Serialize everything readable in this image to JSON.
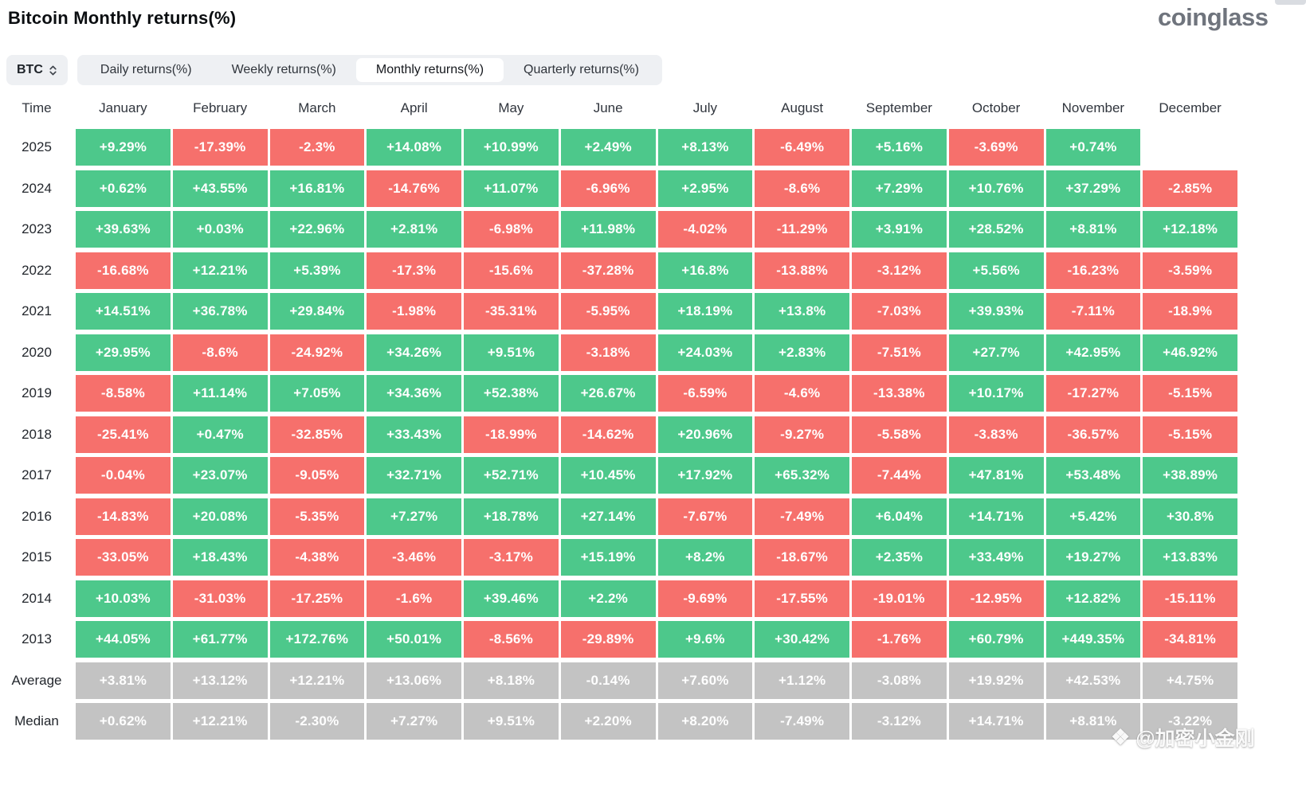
{
  "page": {
    "title": "Bitcoin Monthly returns(%)",
    "logo": "coinglass",
    "watermark": "@加密小金刚"
  },
  "toolbar": {
    "symbol": "BTC",
    "tabs": [
      {
        "label": "Daily returns(%)",
        "active": false
      },
      {
        "label": "Weekly returns(%)",
        "active": false
      },
      {
        "label": "Monthly returns(%)",
        "active": true
      },
      {
        "label": "Quarterly returns(%)",
        "active": false
      }
    ]
  },
  "colors": {
    "positive": "#4dc88b",
    "negative": "#f6706c",
    "neutral": "#c3c3c3",
    "tab_bar_bg": "#eef0f3",
    "header_text": "#30353d"
  },
  "chart_data": {
    "type": "table",
    "title": "Bitcoin Monthly returns(%)",
    "unit": "%",
    "columns": [
      "Time",
      "January",
      "February",
      "March",
      "April",
      "May",
      "June",
      "July",
      "August",
      "September",
      "October",
      "November",
      "December"
    ],
    "rows": [
      {
        "label": "2025",
        "summary": false,
        "values": [
          "+9.29%",
          "-17.39%",
          "-2.3%",
          "+14.08%",
          "+10.99%",
          "+2.49%",
          "+8.13%",
          "-6.49%",
          "+5.16%",
          "-3.69%",
          "+0.74%",
          ""
        ]
      },
      {
        "label": "2024",
        "summary": false,
        "values": [
          "+0.62%",
          "+43.55%",
          "+16.81%",
          "-14.76%",
          "+11.07%",
          "-6.96%",
          "+2.95%",
          "-8.6%",
          "+7.29%",
          "+10.76%",
          "+37.29%",
          "-2.85%"
        ]
      },
      {
        "label": "2023",
        "summary": false,
        "values": [
          "+39.63%",
          "+0.03%",
          "+22.96%",
          "+2.81%",
          "-6.98%",
          "+11.98%",
          "-4.02%",
          "-11.29%",
          "+3.91%",
          "+28.52%",
          "+8.81%",
          "+12.18%"
        ]
      },
      {
        "label": "2022",
        "summary": false,
        "values": [
          "-16.68%",
          "+12.21%",
          "+5.39%",
          "-17.3%",
          "-15.6%",
          "-37.28%",
          "+16.8%",
          "-13.88%",
          "-3.12%",
          "+5.56%",
          "-16.23%",
          "-3.59%"
        ]
      },
      {
        "label": "2021",
        "summary": false,
        "values": [
          "+14.51%",
          "+36.78%",
          "+29.84%",
          "-1.98%",
          "-35.31%",
          "-5.95%",
          "+18.19%",
          "+13.8%",
          "-7.03%",
          "+39.93%",
          "-7.11%",
          "-18.9%"
        ]
      },
      {
        "label": "2020",
        "summary": false,
        "values": [
          "+29.95%",
          "-8.6%",
          "-24.92%",
          "+34.26%",
          "+9.51%",
          "-3.18%",
          "+24.03%",
          "+2.83%",
          "-7.51%",
          "+27.7%",
          "+42.95%",
          "+46.92%"
        ]
      },
      {
        "label": "2019",
        "summary": false,
        "values": [
          "-8.58%",
          "+11.14%",
          "+7.05%",
          "+34.36%",
          "+52.38%",
          "+26.67%",
          "-6.59%",
          "-4.6%",
          "-13.38%",
          "+10.17%",
          "-17.27%",
          "-5.15%"
        ]
      },
      {
        "label": "2018",
        "summary": false,
        "values": [
          "-25.41%",
          "+0.47%",
          "-32.85%",
          "+33.43%",
          "-18.99%",
          "-14.62%",
          "+20.96%",
          "-9.27%",
          "-5.58%",
          "-3.83%",
          "-36.57%",
          "-5.15%"
        ]
      },
      {
        "label": "2017",
        "summary": false,
        "values": [
          "-0.04%",
          "+23.07%",
          "-9.05%",
          "+32.71%",
          "+52.71%",
          "+10.45%",
          "+17.92%",
          "+65.32%",
          "-7.44%",
          "+47.81%",
          "+53.48%",
          "+38.89%"
        ]
      },
      {
        "label": "2016",
        "summary": false,
        "values": [
          "-14.83%",
          "+20.08%",
          "-5.35%",
          "+7.27%",
          "+18.78%",
          "+27.14%",
          "-7.67%",
          "-7.49%",
          "+6.04%",
          "+14.71%",
          "+5.42%",
          "+30.8%"
        ]
      },
      {
        "label": "2015",
        "summary": false,
        "values": [
          "-33.05%",
          "+18.43%",
          "-4.38%",
          "-3.46%",
          "-3.17%",
          "+15.19%",
          "+8.2%",
          "-18.67%",
          "+2.35%",
          "+33.49%",
          "+19.27%",
          "+13.83%"
        ]
      },
      {
        "label": "2014",
        "summary": false,
        "values": [
          "+10.03%",
          "-31.03%",
          "-17.25%",
          "-1.6%",
          "+39.46%",
          "+2.2%",
          "-9.69%",
          "-17.55%",
          "-19.01%",
          "-12.95%",
          "+12.82%",
          "-15.11%"
        ]
      },
      {
        "label": "2013",
        "summary": false,
        "values": [
          "+44.05%",
          "+61.77%",
          "+172.76%",
          "+50.01%",
          "-8.56%",
          "-29.89%",
          "+9.6%",
          "+30.42%",
          "-1.76%",
          "+60.79%",
          "+449.35%",
          "-34.81%"
        ]
      },
      {
        "label": "Average",
        "summary": true,
        "values": [
          "+3.81%",
          "+13.12%",
          "+12.21%",
          "+13.06%",
          "+8.18%",
          "-0.14%",
          "+7.60%",
          "+1.12%",
          "-3.08%",
          "+19.92%",
          "+42.53%",
          "+4.75%"
        ]
      },
      {
        "label": "Median",
        "summary": true,
        "values": [
          "+0.62%",
          "+12.21%",
          "-2.30%",
          "+7.27%",
          "+9.51%",
          "+2.20%",
          "+8.20%",
          "-7.49%",
          "-3.12%",
          "+14.71%",
          "+8.81%",
          "-3.22%"
        ]
      }
    ],
    "legend": {
      "positive": "green",
      "negative": "red",
      "summary_rows": "gray"
    }
  }
}
